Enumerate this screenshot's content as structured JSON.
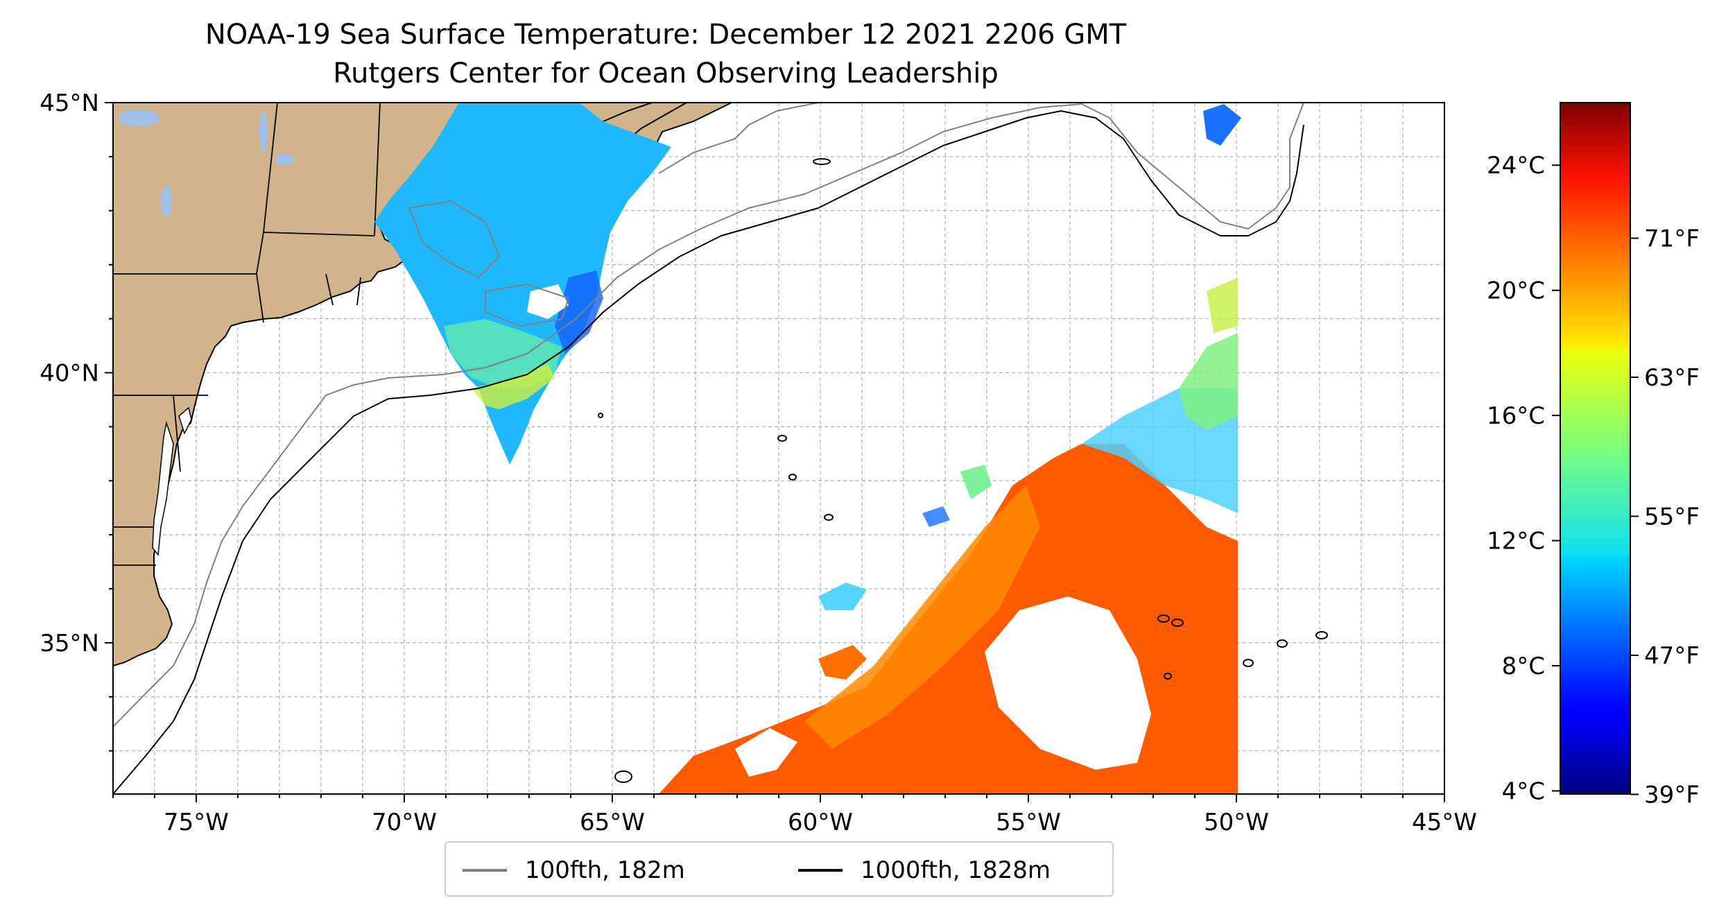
{
  "title": {
    "line1": "NOAA-19 Sea Surface Temperature: December 12 2021 2206 GMT",
    "line2": "Rutgers Center for Ocean Observing Leadership"
  },
  "map": {
    "lon_range": [
      -77,
      -45
    ],
    "lat_range": [
      32.2,
      45
    ],
    "x_ticks": [
      {
        "value": -75,
        "label": "75°W"
      },
      {
        "value": -70,
        "label": "70°W"
      },
      {
        "value": -65,
        "label": "65°W"
      },
      {
        "value": -60,
        "label": "60°W"
      },
      {
        "value": -55,
        "label": "55°W"
      },
      {
        "value": -50,
        "label": "50°W"
      },
      {
        "value": -45,
        "label": "45°W"
      }
    ],
    "y_ticks": [
      {
        "value": 45,
        "label": "45°N"
      },
      {
        "value": 40,
        "label": "40°N"
      },
      {
        "value": 35,
        "label": "35°N"
      }
    ],
    "gridlines": true,
    "colors": {
      "land": "#d2b48c",
      "lakes": "#9ebfe8",
      "contour_100fth": "#808080",
      "contour_1000fth": "#000000",
      "grid": "#b0b0b0"
    }
  },
  "colorbar": {
    "colormap": "jet",
    "range_c": [
      3.9,
      26.0
    ],
    "celsius_ticks": [
      {
        "value": 4,
        "label": "4°C"
      },
      {
        "value": 8,
        "label": "8°C"
      },
      {
        "value": 12,
        "label": "12°C"
      },
      {
        "value": 16,
        "label": "16°C"
      },
      {
        "value": 20,
        "label": "20°C"
      },
      {
        "value": 24,
        "label": "24°C"
      }
    ],
    "fahrenheit_ticks": [
      {
        "value": 39,
        "label": "39°F"
      },
      {
        "value": 47,
        "label": "47°F"
      },
      {
        "value": 55,
        "label": "55°F"
      },
      {
        "value": 63,
        "label": "63°F"
      },
      {
        "value": 71,
        "label": "71°F"
      }
    ]
  },
  "legend": {
    "items": [
      {
        "label": "100fth, 182m",
        "color": "#808080"
      },
      {
        "label": "1000fth, 1828m",
        "color": "#000000"
      }
    ]
  }
}
